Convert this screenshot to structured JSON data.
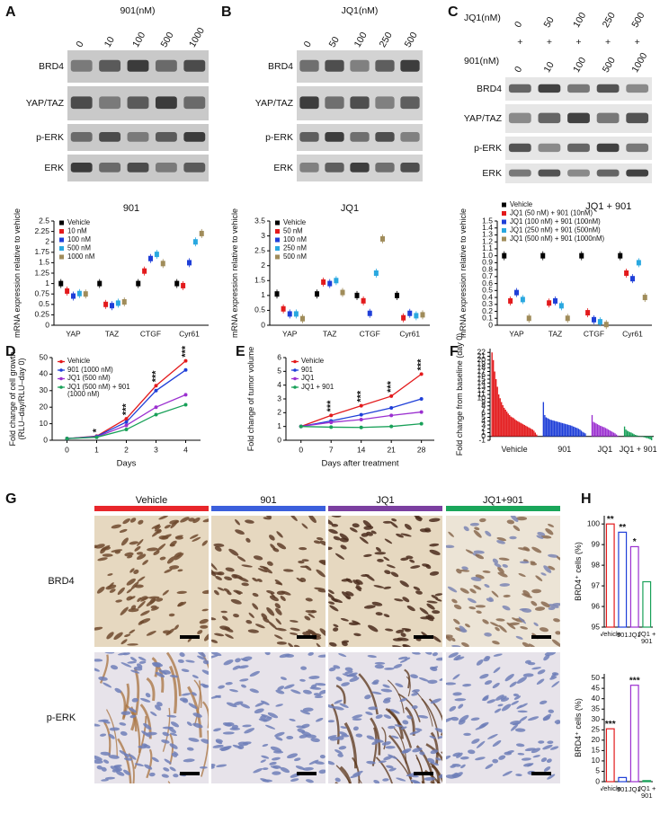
{
  "panel_labels": [
    "A",
    "B",
    "C",
    "D",
    "E",
    "F",
    "G",
    "H"
  ],
  "blots": [
    {
      "headers": [
        {
          "title": "901(nM)",
          "lanes": [
            "0",
            "10",
            "100",
            "500",
            "1000"
          ]
        }
      ],
      "rows": [
        "BRD4",
        "YAP/TAZ",
        "p-ERK",
        "ERK"
      ]
    },
    {
      "headers": [
        {
          "title": "JQ1(nM)",
          "lanes": [
            "0",
            "50",
            "100",
            "250",
            "500"
          ]
        }
      ],
      "rows": [
        "BRD4",
        "YAP/TAZ",
        "p-ERK",
        "ERK"
      ]
    },
    {
      "headers": [
        {
          "title": "JQ1(nM)",
          "lanes": [
            "0",
            "50",
            "100",
            "250",
            "500"
          ]
        },
        {
          "title": "901(nM)",
          "lanes": [
            "0",
            "10",
            "100",
            "500",
            "1000"
          ]
        }
      ],
      "signs": [
        "+",
        "+",
        "+",
        "+",
        "+"
      ],
      "rows": [
        "BRD4",
        "YAP/TAZ",
        "p-ERK",
        "ERK"
      ]
    }
  ],
  "chart_data": [
    {
      "type": "dot",
      "title": "901",
      "y_label": "mRNA expression relative to vehicle",
      "categories": [
        "YAP",
        "TAZ",
        "CTGF",
        "Cyr61"
      ],
      "series": [
        {
          "name": "Vehicle",
          "color": "#000000",
          "values": [
            1,
            1,
            1,
            1
          ]
        },
        {
          "name": "10 nM",
          "color": "#e31a1c",
          "values": [
            0.82,
            0.5,
            1.3,
            0.95
          ]
        },
        {
          "name": "100 nM",
          "color": "#1f3fd8",
          "values": [
            0.7,
            0.47,
            1.6,
            1.5
          ]
        },
        {
          "name": "500 nM",
          "color": "#29a8e0",
          "values": [
            0.76,
            0.53,
            1.7,
            2.0
          ]
        },
        {
          "name": "1000 nM",
          "color": "#a08c5a",
          "values": [
            0.75,
            0.56,
            1.48,
            2.2
          ]
        }
      ],
      "ylim": [
        0,
        2.5
      ],
      "yticks": [
        0,
        0.25,
        0.5,
        0.75,
        1,
        1.25,
        1.5,
        1.75,
        2,
        2.25,
        2.5
      ]
    },
    {
      "type": "dot",
      "title": "JQ1",
      "y_label": "mRNA expression relative to vehicle",
      "categories": [
        "YAP",
        "TAZ",
        "CTGF",
        "Cyr61"
      ],
      "series": [
        {
          "name": "Vehicle",
          "color": "#000000",
          "values": [
            1.05,
            1.05,
            1.0,
            1.0
          ]
        },
        {
          "name": "50 nM",
          "color": "#e31a1c",
          "values": [
            0.55,
            1.45,
            0.82,
            0.25
          ]
        },
        {
          "name": "100 nM",
          "color": "#1f3fd8",
          "values": [
            0.38,
            1.4,
            0.4,
            0.4
          ]
        },
        {
          "name": "250 nM",
          "color": "#29a8e0",
          "values": [
            0.38,
            1.5,
            1.75,
            0.32
          ]
        },
        {
          "name": "500 nM",
          "color": "#a08c5a",
          "values": [
            0.22,
            1.1,
            2.9,
            0.35
          ]
        }
      ],
      "ylim": [
        0,
        3.5
      ],
      "yticks": [
        0,
        0.5,
        1,
        1.5,
        2,
        2.5,
        3,
        3.5
      ]
    },
    {
      "type": "dot",
      "title": "JQ1 + 901",
      "y_label": "mRNA expression relative to vehicle",
      "categories": [
        "YAP",
        "TAZ",
        "CTGF",
        "Cyr61"
      ],
      "series": [
        {
          "name": "Vehicle",
          "color": "#000000",
          "values": [
            1.0,
            1.0,
            1.0,
            1.0
          ]
        },
        {
          "name": "JQ1 (50 nM) + 901 (10nM)",
          "color": "#e31a1c",
          "values": [
            0.35,
            0.32,
            0.18,
            0.75
          ]
        },
        {
          "name": "JQ1 (100 nM) + 901 (100nM)",
          "color": "#1f3fd8",
          "values": [
            0.47,
            0.35,
            0.08,
            0.67
          ]
        },
        {
          "name": "JQ1 (250 nM) + 901 (500nM)",
          "color": "#29a8e0",
          "values": [
            0.37,
            0.28,
            0.05,
            0.9
          ]
        },
        {
          "name": "JQ1 (500 nM) + 901 (1000nM)",
          "color": "#a08c5a",
          "values": [
            0.1,
            0.1,
            0.01,
            0.4
          ]
        }
      ],
      "ylim": [
        0,
        1.5
      ],
      "yticks": [
        0,
        0.1,
        0.2,
        0.3,
        0.4,
        0.5,
        0.6,
        0.7,
        0.8,
        0.9,
        {
          "value": 1,
          "label": "1.0"
        },
        1.1,
        1.2,
        1.3,
        1.4,
        1.5
      ]
    },
    {
      "type": "line",
      "x_label": "Days",
      "y_label": "Fold change of cell growth (RLU–day/RLU–day 0)",
      "x": [
        0,
        1,
        2,
        3,
        4
      ],
      "series": [
        {
          "name": "Vehicle",
          "color": "#e31a1c",
          "values": [
            1,
            2.5,
            13,
            33,
            48
          ]
        },
        {
          "name": "901 (1000 nM)",
          "color": "#1f3fd8",
          "values": [
            1,
            2.3,
            11,
            30,
            42.5
          ]
        },
        {
          "name": "JQ1 (500 nM)",
          "color": "#9b30d0",
          "values": [
            1,
            2,
            9,
            20,
            27.5
          ]
        },
        {
          "name": "JQ1 (500 nM) + 901 (1000 nM)",
          "color": "#18a058",
          "values": [
            1,
            1.8,
            6.5,
            15.5,
            21.5
          ]
        }
      ],
      "annotations": [
        null,
        "*",
        "***",
        "***",
        "***"
      ],
      "xlim": [
        -0.5,
        4.5
      ],
      "xticks": [
        0,
        1,
        2,
        3,
        4
      ],
      "ylim": [
        0,
        50
      ],
      "yticks": [
        0,
        10,
        20,
        30,
        40,
        50
      ]
    },
    {
      "type": "line",
      "x_label": "Days after treatment",
      "y_label": "Fold change of tumor volume",
      "x": [
        0,
        7,
        14,
        21,
        28
      ],
      "series": [
        {
          "name": "Vehicle",
          "color": "#e31a1c",
          "values": [
            1,
            1.8,
            2.5,
            3.2,
            4.8
          ]
        },
        {
          "name": "901",
          "color": "#1f3fd8",
          "values": [
            1,
            1.4,
            1.85,
            2.35,
            3.0
          ]
        },
        {
          "name": "JQ1",
          "color": "#9b30d0",
          "values": [
            1,
            1.3,
            1.5,
            1.8,
            2.05
          ]
        },
        {
          "name": "JQ1 + 901",
          "color": "#18a058",
          "values": [
            1,
            0.95,
            0.93,
            1.0,
            1.2
          ]
        }
      ],
      "annotations": [
        null,
        "***",
        "***",
        "***",
        "***"
      ],
      "xlim": [
        -3.5,
        31
      ],
      "xticks": [
        0,
        7,
        14,
        21,
        28
      ],
      "ylim": [
        0,
        6
      ],
      "yticks": [
        0,
        1,
        2,
        3,
        4,
        5,
        6
      ]
    },
    {
      "type": "waterfall",
      "y_label": "Fold change from baseline (day 0)",
      "series": [
        {
          "name": "Vehicle",
          "color": "#e31a1c",
          "values": [
            22,
            20,
            17,
            15,
            13,
            11,
            10,
            9,
            8.2,
            7.5,
            7,
            6.5,
            6,
            5.6,
            5.2,
            5,
            4.8,
            4.5,
            4.2,
            4,
            3.8,
            3.6,
            3.4,
            3.2,
            3,
            2.8,
            2.6,
            2.4,
            2.2,
            2,
            1.8,
            1.5,
            1,
            0.5
          ]
        },
        {
          "name": "901",
          "color": "#1f3fd8",
          "values": [
            9,
            5.6,
            5,
            4.8,
            4.6,
            4.4,
            4.3,
            4.2,
            4.1,
            4,
            3.9,
            3.8,
            3.7,
            3.6,
            3.5,
            3.4,
            3.3,
            3.2,
            3.1,
            3,
            2.9,
            2.8,
            2.6,
            2.5,
            2.3,
            2.2,
            2,
            1.8,
            1.5,
            1.2,
            1,
            0.8
          ]
        },
        {
          "name": "JQ1",
          "color": "#9b30d0",
          "values": [
            5.6,
            3.8,
            3.6,
            3.4,
            3.2,
            3,
            2.8,
            2.7,
            2.5,
            2.4,
            2.2,
            2,
            1.8,
            1.6,
            1.4,
            1.2,
            1,
            0.8,
            0.5,
            0.2
          ]
        },
        {
          "name": "JQ1 + 901",
          "color": "#18a058",
          "values": [
            2.6,
            1.8,
            1.5,
            1.3,
            1.1,
            1,
            0.8,
            0.6,
            0.4,
            0.3,
            0.2,
            0.1,
            0,
            -0.1,
            -0.2,
            -0.3,
            -0.4,
            -0.5,
            -0.6,
            -0.8,
            -1
          ]
        }
      ],
      "ylim": [
        -1,
        23
      ],
      "yticks": [
        -1,
        0,
        1,
        2,
        3,
        4,
        5,
        6,
        7,
        8,
        9,
        10,
        11,
        12,
        13,
        14,
        15,
        16,
        17,
        18,
        19,
        20,
        21,
        22
      ]
    },
    {
      "type": "bar",
      "y_label": "BRD4⁺ cells (%)",
      "categories": [
        "Vehicle",
        "901",
        "JQ1",
        "JQ1 + 901"
      ],
      "values": [
        100,
        99.6,
        98.9,
        97.2
      ],
      "colors": [
        "#e31a1c",
        "#1f3fd8",
        "#9b30d0",
        "#18a058"
      ],
      "annotations": [
        "**",
        "**",
        "*",
        null
      ],
      "ylim": [
        95,
        100.4
      ],
      "yticks": [
        95,
        96,
        97,
        98,
        99,
        100
      ]
    },
    {
      "type": "bar",
      "y_label": "BRD4⁺ cells (%)",
      "categories": [
        "Vehicle",
        "901",
        "JQ1",
        "JQ1 + 901"
      ],
      "values": [
        25.5,
        2,
        46.5,
        0.5
      ],
      "colors": [
        "#e31a1c",
        "#1f3fd8",
        "#9b30d0",
        "#18a058"
      ],
      "annotations": [
        "***",
        null,
        "***",
        null
      ],
      "ylim": [
        0,
        52
      ],
      "yticks": [
        0,
        5,
        10,
        15,
        20,
        25,
        30,
        35,
        40,
        45,
        50
      ]
    }
  ],
  "histology": {
    "columns": [
      {
        "name": "Vehicle",
        "color": "#e8262b"
      },
      {
        "name": "901",
        "color": "#3b5fdc"
      },
      {
        "name": "JQ1",
        "color": "#7b3fa0"
      },
      {
        "name": "JQ1+901",
        "color": "#1aa65a"
      }
    ],
    "rows": [
      "BRD4",
      "p-ERK"
    ]
  }
}
